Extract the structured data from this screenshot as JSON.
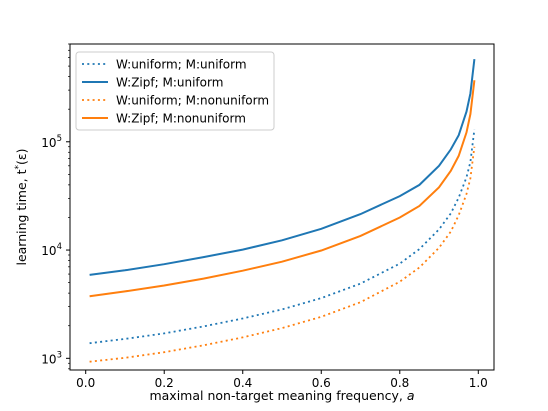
{
  "chart_data": {
    "type": "line",
    "title": "",
    "xlabel": "maximal non-target meaning frequency, ",
    "xlabel_var": "a",
    "ylabel": "learning time, t",
    "ylabel_sup": "*",
    "ylabel_arg": "(ε)",
    "y_scale": "log",
    "xlim": [
      -0.04,
      1.04
    ],
    "ylim": [
      780,
      800000
    ],
    "x_ticks": [
      0.0,
      0.2,
      0.4,
      0.6,
      0.8,
      1.0
    ],
    "x_tick_labels": [
      "0.0",
      "0.2",
      "0.4",
      "0.6",
      "0.8",
      "1.0"
    ],
    "y_ticks": [
      1000,
      10000,
      100000
    ],
    "y_tick_labels": [
      {
        "base": "10",
        "exp": "3"
      },
      {
        "base": "10",
        "exp": "4"
      },
      {
        "base": "10",
        "exp": "5"
      }
    ],
    "grid": false,
    "legend_position": "top-left",
    "x": [
      0.01,
      0.1,
      0.2,
      0.3,
      0.4,
      0.5,
      0.6,
      0.7,
      0.8,
      0.85,
      0.9,
      0.93,
      0.95,
      0.97,
      0.98,
      0.99
    ],
    "series": [
      {
        "name": "W:uniform; M:uniform",
        "color": "#1f77b4",
        "style": "dotted",
        "values": [
          1380,
          1510,
          1700,
          1970,
          2330,
          2830,
          3600,
          4900,
          7500,
          10200,
          15500,
          21800,
          30500,
          47000,
          65000,
          130000
        ]
      },
      {
        "name": "W:Zipf; M:uniform",
        "color": "#1f77b4",
        "style": "solid",
        "values": [
          5900,
          6500,
          7400,
          8600,
          10100,
          12300,
          15700,
          21500,
          31500,
          40000,
          60000,
          85000,
          115000,
          190000,
          280000,
          580000
        ]
      },
      {
        "name": "W:uniform; M:nonuniform",
        "color": "#ff7f0e",
        "style": "dotted",
        "values": [
          930,
          1010,
          1140,
          1320,
          1560,
          1900,
          2420,
          3300,
          5100,
          6900,
          10500,
          14800,
          21000,
          33000,
          46000,
          90000
        ]
      },
      {
        "name": "W:Zipf; M:nonuniform",
        "color": "#ff7f0e",
        "style": "solid",
        "values": [
          3750,
          4150,
          4700,
          5450,
          6450,
          7800,
          9900,
          13500,
          20000,
          25500,
          38000,
          54000,
          74000,
          122000,
          180000,
          370000
        ]
      }
    ]
  }
}
